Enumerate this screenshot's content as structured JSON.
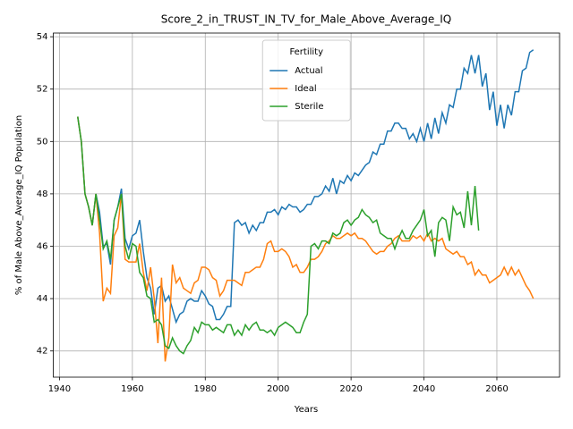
{
  "chart_data": {
    "type": "line",
    "title": "Score_2_in_TRUST_IN_TV_for_Male_Above_Average_IQ",
    "xlabel": "Years",
    "ylabel": "% of Male Above_Average_IQ Population",
    "legend_title": "Fertility",
    "legend": "upper center",
    "grid": true,
    "xlim": [
      1938.3,
      2077.2
    ],
    "ylim": [
      41.0,
      54.14
    ],
    "xticks": [
      1940,
      1960,
      1980,
      2000,
      2020,
      2040,
      2060
    ],
    "yticks": [
      42,
      44,
      46,
      48,
      50,
      52,
      54
    ],
    "x": [
      1945,
      1946,
      1947,
      1948,
      1949,
      1950,
      1951,
      1952,
      1953,
      1954,
      1955,
      1956,
      1957,
      1958,
      1959,
      1960,
      1961,
      1962,
      1963,
      1964,
      1965,
      1966,
      1967,
      1968,
      1969,
      1970,
      1971,
      1972,
      1973,
      1974,
      1975,
      1976,
      1977,
      1978,
      1979,
      1980,
      1981,
      1982,
      1983,
      1984,
      1985,
      1986,
      1987,
      1988,
      1989,
      1990,
      1991,
      1992,
      1993,
      1994,
      1995,
      1996,
      1997,
      1998,
      1999,
      2000,
      2001,
      2002,
      2003,
      2004,
      2005,
      2006,
      2007,
      2008,
      2009,
      2010,
      2011,
      2012,
      2013,
      2014,
      2015,
      2016,
      2017,
      2018,
      2019,
      2020,
      2021,
      2022,
      2023,
      2024,
      2025,
      2026,
      2027,
      2028,
      2029,
      2030,
      2031,
      2032,
      2033,
      2034,
      2035,
      2036,
      2037,
      2038,
      2039,
      2040,
      2041,
      2042,
      2043,
      2044,
      2045,
      2046,
      2047,
      2048,
      2049,
      2050,
      2051,
      2052,
      2053,
      2054,
      2055,
      2056,
      2057,
      2058,
      2059,
      2060,
      2061,
      2062,
      2063,
      2064,
      2065,
      2066,
      2067,
      2068,
      2069,
      2070
    ],
    "series": [
      {
        "name": "Actual",
        "color": "#1f77b4",
        "values": [
          50.95,
          50.0,
          48.0,
          47.5,
          46.8,
          48.0,
          47.3,
          46.0,
          46.1,
          45.3,
          47.0,
          47.5,
          48.2,
          46.3,
          45.9,
          46.4,
          46.5,
          47.0,
          45.8,
          44.8,
          44.4,
          43.4,
          44.4,
          44.5,
          43.9,
          44.1,
          43.6,
          43.1,
          43.4,
          43.5,
          43.9,
          44.0,
          43.9,
          43.9,
          44.3,
          44.1,
          43.8,
          43.7,
          43.2,
          43.2,
          43.4,
          43.7,
          43.7,
          46.9,
          47.0,
          46.8,
          46.9,
          46.5,
          46.8,
          46.6,
          46.9,
          46.9,
          47.3,
          47.3,
          47.4,
          47.2,
          47.5,
          47.4,
          47.6,
          47.5,
          47.5,
          47.3,
          47.4,
          47.6,
          47.6,
          47.9,
          47.9,
          48.0,
          48.3,
          48.1,
          48.6,
          48.0,
          48.5,
          48.4,
          48.7,
          48.5,
          48.8,
          48.7,
          48.9,
          49.1,
          49.2,
          49.6,
          49.5,
          49.9,
          49.9,
          50.4,
          50.4,
          50.7,
          50.7,
          50.5,
          50.5,
          50.1,
          50.3,
          50.0,
          50.5,
          50.0,
          50.7,
          50.1,
          50.9,
          50.3,
          51.1,
          50.7,
          51.4,
          51.3,
          52.0,
          52.0,
          52.8,
          52.6,
          53.3,
          52.6,
          53.3,
          52.1,
          52.6,
          51.2,
          51.9,
          50.6,
          51.4,
          50.5,
          51.4,
          51.0,
          51.9,
          51.9,
          52.7,
          52.8,
          53.4,
          53.5
        ]
      },
      {
        "name": "Ideal",
        "color": "#ff7f0e",
        "values": [
          50.95,
          50.0,
          48.0,
          47.5,
          46.8,
          48.0,
          46.5,
          43.9,
          44.4,
          44.2,
          46.4,
          46.7,
          48.0,
          45.5,
          45.4,
          45.4,
          45.4,
          46.1,
          45.0,
          44.3,
          45.2,
          44.0,
          42.3,
          44.8,
          41.6,
          42.5,
          45.3,
          44.6,
          44.8,
          44.4,
          44.3,
          44.2,
          44.6,
          44.7,
          45.2,
          45.2,
          45.1,
          44.8,
          44.7,
          44.1,
          44.3,
          44.7,
          44.7,
          44.7,
          44.6,
          44.5,
          45.0,
          45.0,
          45.1,
          45.2,
          45.2,
          45.5,
          46.1,
          46.2,
          45.8,
          45.8,
          45.9,
          45.8,
          45.6,
          45.2,
          45.3,
          45.0,
          45.0,
          45.2,
          45.5,
          45.5,
          45.6,
          45.8,
          46.1,
          46.2,
          46.4,
          46.3,
          46.3,
          46.4,
          46.5,
          46.4,
          46.5,
          46.3,
          46.3,
          46.2,
          46.0,
          45.8,
          45.7,
          45.8,
          45.8,
          46.0,
          46.1,
          46.3,
          46.4,
          46.2,
          46.2,
          46.2,
          46.4,
          46.3,
          46.4,
          46.2,
          46.5,
          46.2,
          46.3,
          46.2,
          46.3,
          45.9,
          45.8,
          45.7,
          45.8,
          45.6,
          45.6,
          45.3,
          45.4,
          44.9,
          45.1,
          44.9,
          44.9,
          44.6,
          44.7,
          44.8,
          44.9,
          45.2,
          44.9,
          45.2,
          44.9,
          45.1,
          44.8,
          44.5,
          44.3,
          44.0
        ]
      },
      {
        "name": "Sterile",
        "color": "#2ca02c",
        "values": [
          50.95,
          50.0,
          48.0,
          47.5,
          46.8,
          48.0,
          47.0,
          45.9,
          46.2,
          45.5,
          47.0,
          47.5,
          48.0,
          46.0,
          45.5,
          46.1,
          46.0,
          45.0,
          44.8,
          44.1,
          44.0,
          43.1,
          43.2,
          43.0,
          42.2,
          42.1,
          42.5,
          42.2,
          42.0,
          41.9,
          42.2,
          42.4,
          42.9,
          42.7,
          43.1,
          43.0,
          43.0,
          42.8,
          42.9,
          42.8,
          42.7,
          43.0,
          43.0,
          42.6,
          42.8,
          42.6,
          43.0,
          42.8,
          43.0,
          43.1,
          42.8,
          42.8,
          42.7,
          42.8,
          42.6,
          42.9,
          43.0,
          43.1,
          43.0,
          42.9,
          42.7,
          42.7,
          43.1,
          43.4,
          46.0,
          46.1,
          45.9,
          46.2,
          46.2,
          46.1,
          46.5,
          46.4,
          46.5,
          46.9,
          47.0,
          46.8,
          47.0,
          47.1,
          47.4,
          47.2,
          47.1,
          46.9,
          47.0,
          46.5,
          46.4,
          46.3,
          46.3,
          45.9,
          46.3,
          46.6,
          46.3,
          46.3,
          46.6,
          46.8,
          47.0,
          47.4,
          46.4,
          46.6,
          45.6,
          46.9,
          47.1,
          47.0,
          46.2,
          47.5,
          47.2,
          47.3,
          46.7,
          48.1,
          46.8,
          48.3,
          46.6,
          null,
          null,
          null,
          null,
          null,
          null,
          null,
          null,
          null,
          null,
          null,
          null,
          null,
          null,
          null
        ]
      }
    ]
  }
}
